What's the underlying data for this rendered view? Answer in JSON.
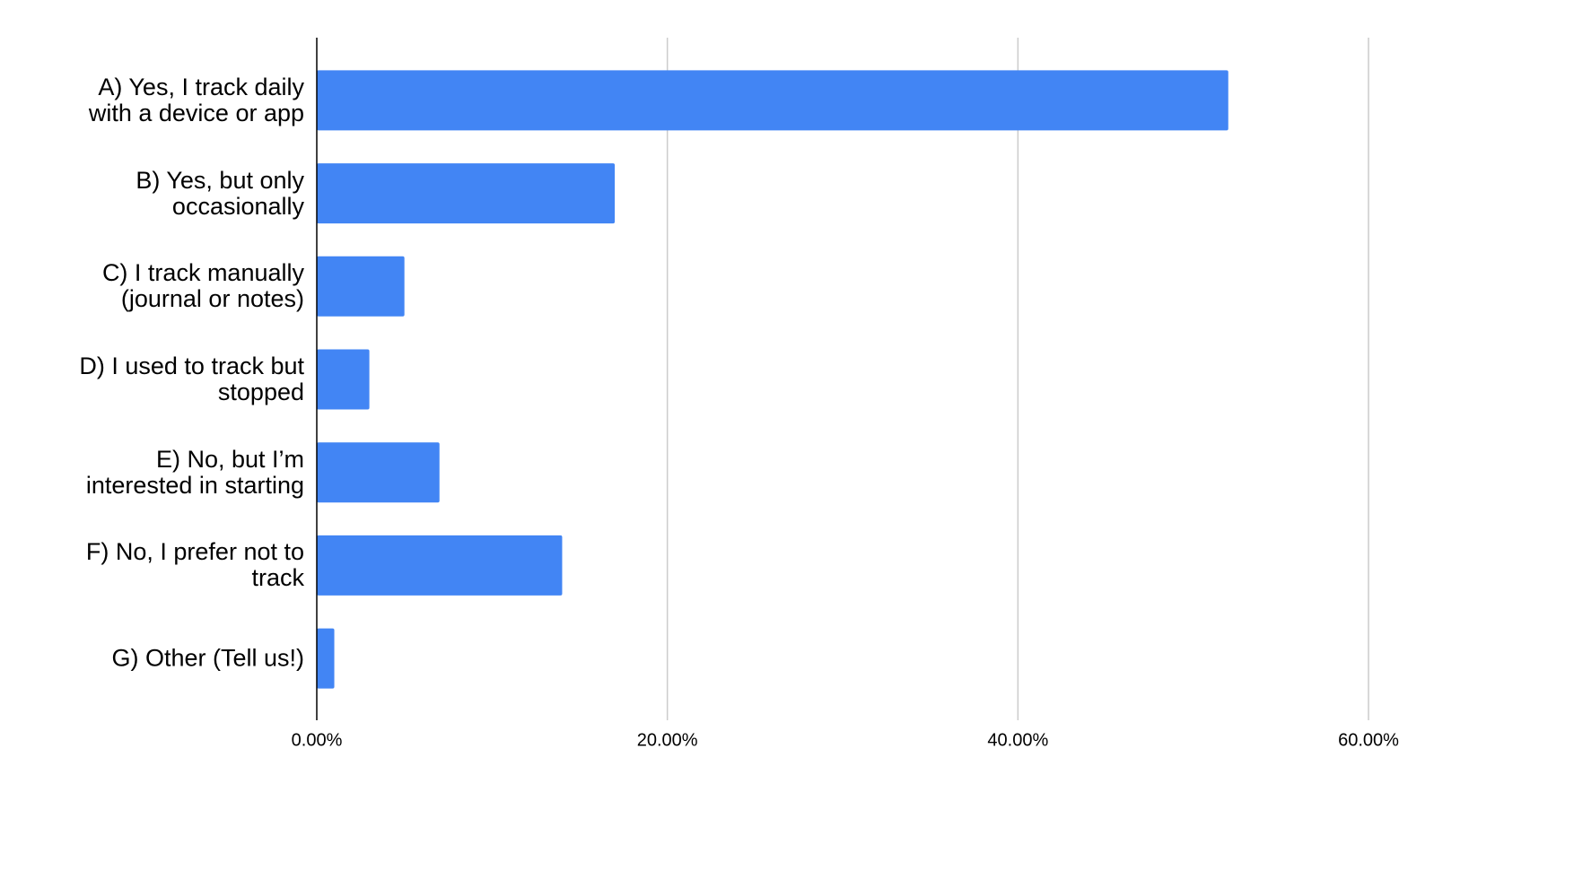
{
  "chart_data": {
    "type": "bar",
    "orientation": "horizontal",
    "categories": [
      "A) Yes, I track daily\nwith a device or app",
      "B) Yes, but only\noccasionally",
      "C) I track manually\n(journal or notes)",
      "D) I used to track but\nstopped",
      "E) No, but I’m\ninterested in starting",
      "F) No, I prefer not to\ntrack",
      "G) Other (Tell us!)"
    ],
    "values": [
      52,
      17,
      5,
      3,
      7,
      14,
      1
    ],
    "color": "#4285f4",
    "xlim": [
      0,
      60
    ],
    "xticks": [
      {
        "value": 0,
        "label": "0.00%"
      },
      {
        "value": 20,
        "label": "20.00%"
      },
      {
        "value": 40,
        "label": "40.00%"
      },
      {
        "value": 60,
        "label": "60.00%"
      }
    ],
    "grid": true
  }
}
